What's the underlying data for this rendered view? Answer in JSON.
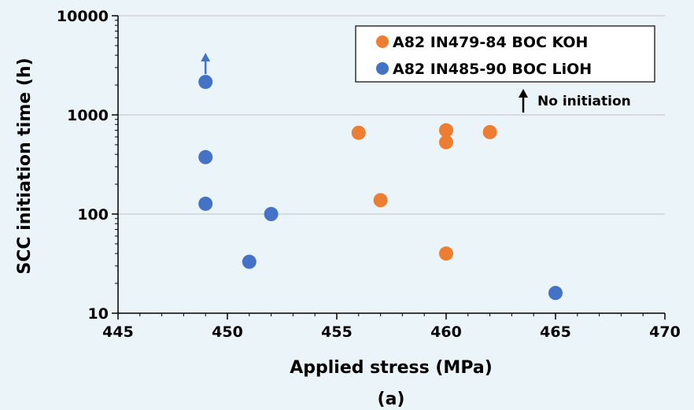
{
  "chart_data": {
    "type": "scatter",
    "xlabel": "Applied stress (MPa)",
    "ylabel": "SCC initiation time (h)",
    "caption": "(a)",
    "xlim": [
      445,
      470
    ],
    "ylim": [
      10,
      10000
    ],
    "y_scale": "log",
    "x_ticks": [
      "445",
      "450",
      "455",
      "460",
      "465",
      "470"
    ],
    "y_ticks": [
      "10",
      "100",
      "1000",
      "10000"
    ],
    "grid": "horizontal major gridlines",
    "legend_position": "top-right",
    "series": [
      {
        "name": "A82 IN479-84 BOC KOH",
        "color": "#ed7d31",
        "points": [
          {
            "x": 456,
            "y": 660
          },
          {
            "x": 457,
            "y": 138
          },
          {
            "x": 460,
            "y": 700
          },
          {
            "x": 460,
            "y": 530
          },
          {
            "x": 460,
            "y": 40
          },
          {
            "x": 462,
            "y": 670
          }
        ]
      },
      {
        "name": "A82 IN485-90 BOC LiOH",
        "color": "#4472c4",
        "points": [
          {
            "x": 449,
            "y": 2150,
            "no_initiation": true
          },
          {
            "x": 449,
            "y": 375
          },
          {
            "x": 449,
            "y": 127
          },
          {
            "x": 451,
            "y": 33
          },
          {
            "x": 452,
            "y": 100
          },
          {
            "x": 465,
            "y": 16
          }
        ]
      }
    ],
    "annotation": {
      "text": "No initiation",
      "symbol": "up-arrow"
    }
  }
}
